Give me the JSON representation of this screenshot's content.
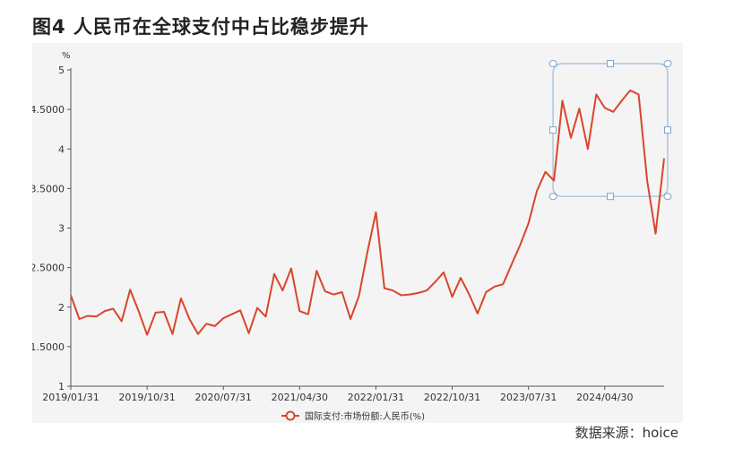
{
  "header": {
    "title": "图4  人民币在全球支付中占比稳步提升"
  },
  "source": {
    "text": "数据来源：hoice"
  },
  "chart_data": {
    "type": "line",
    "ylabel": "%",
    "ylim": [
      1,
      5
    ],
    "yticks": [
      1,
      1.5,
      2,
      2.5,
      3,
      3.5,
      4,
      4.5,
      5
    ],
    "ytick_labels": [
      "1",
      "1.5000",
      "2",
      "2.5000",
      "3",
      "3.5000",
      "4",
      "4.5000",
      "5"
    ],
    "x_tick_labels": [
      "2019/01/31",
      "2019/10/31",
      "2020/07/31",
      "2021/04/30",
      "2022/01/31",
      "2022/10/31",
      "2023/07/31",
      "2024/04/30"
    ],
    "legend": {
      "label": "国际支付:市场份额:人民币(%)",
      "position": "bottom-center"
    },
    "line_color": "#d9452b",
    "highlight_box": {
      "start_index": 57,
      "end_index": 70,
      "ymin": 3.4,
      "ymax": 5.0
    },
    "series": [
      {
        "values": [
          2.15,
          1.85,
          1.89,
          1.88,
          1.95,
          1.98,
          1.82,
          2.22,
          1.95,
          1.65,
          1.93,
          1.94,
          1.66,
          2.11,
          1.85,
          1.66,
          1.79,
          1.76,
          1.86,
          1.91,
          1.96,
          1.67,
          1.99,
          1.88,
          2.42,
          2.21,
          2.49,
          1.95,
          1.91,
          2.46,
          2.2,
          2.16,
          2.19,
          1.85,
          2.14,
          2.7,
          3.2,
          2.24,
          2.21,
          2.15,
          2.16,
          2.18,
          2.21,
          2.32,
          2.44,
          2.13,
          2.37,
          2.16,
          1.92,
          2.19,
          2.26,
          2.29,
          2.54,
          2.78,
          3.06,
          3.47,
          3.71,
          3.6,
          4.61,
          4.14,
          4.51,
          4.0,
          4.69,
          4.52,
          4.47,
          4.61,
          4.74,
          4.69,
          3.6,
          2.93,
          3.88
        ]
      }
    ]
  }
}
